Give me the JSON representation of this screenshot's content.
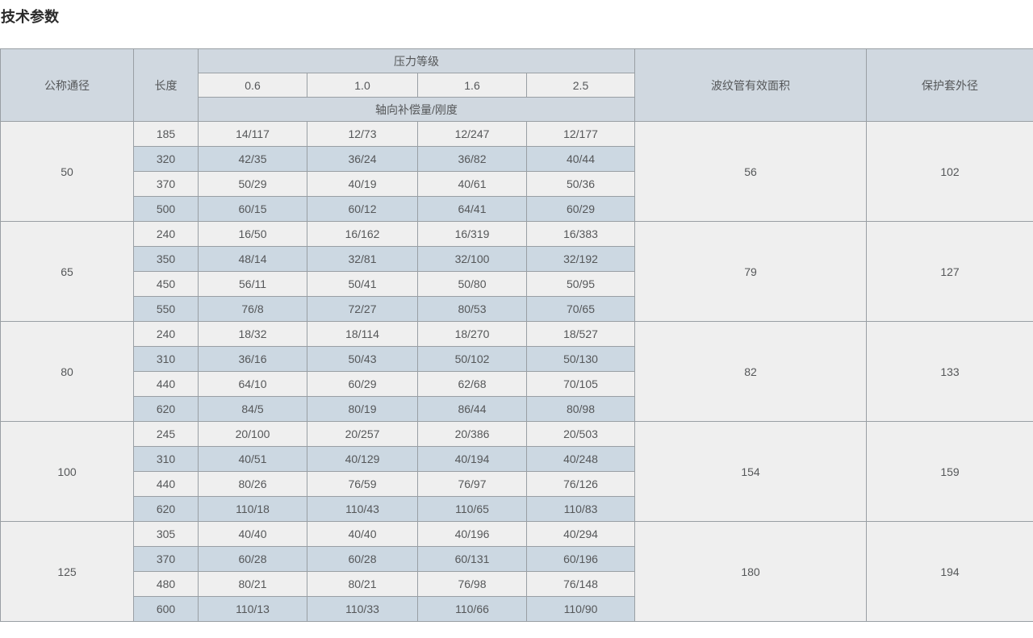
{
  "page": {
    "title": "技术参数"
  },
  "colors": {
    "header_bg": "#d0d8e0",
    "stripe_blue_bg": "#ccd8e2",
    "light_cell_bg": "#efefef",
    "border": "#999fa4",
    "text": "#555759",
    "title_text": "#2a2a2a"
  },
  "table": {
    "headers": {
      "col_diameter": "公称通径",
      "col_length": "长度",
      "pressure_group": "压力等级",
      "pressure_levels": [
        "0.6",
        "1.0",
        "1.6",
        "2.5"
      ],
      "axial_label": "轴向补偿量/刚度",
      "col_area": "波纹管有效面积",
      "col_sleeve": "保护套外径"
    },
    "groups": [
      {
        "diameter": "50",
        "area": "56",
        "sleeve": "102",
        "rows": [
          {
            "length": "185",
            "values": [
              "14/117",
              "12/73",
              "12/247",
              "12/177"
            ]
          },
          {
            "length": "320",
            "values": [
              "42/35",
              "36/24",
              "36/82",
              "40/44"
            ]
          },
          {
            "length": "370",
            "values": [
              "50/29",
              "40/19",
              "40/61",
              "50/36"
            ]
          },
          {
            "length": "500",
            "values": [
              "60/15",
              "60/12",
              "64/41",
              "60/29"
            ]
          }
        ]
      },
      {
        "diameter": "65",
        "area": "79",
        "sleeve": "127",
        "rows": [
          {
            "length": "240",
            "values": [
              "16/50",
              "16/162",
              "16/319",
              "16/383"
            ]
          },
          {
            "length": "350",
            "values": [
              "48/14",
              "32/81",
              "32/100",
              "32/192"
            ]
          },
          {
            "length": "450",
            "values": [
              "56/11",
              "50/41",
              "50/80",
              "50/95"
            ]
          },
          {
            "length": "550",
            "values": [
              "76/8",
              "72/27",
              "80/53",
              "70/65"
            ]
          }
        ]
      },
      {
        "diameter": "80",
        "area": "82",
        "sleeve": "133",
        "rows": [
          {
            "length": "240",
            "values": [
              "18/32",
              "18/114",
              "18/270",
              "18/527"
            ]
          },
          {
            "length": "310",
            "values": [
              "36/16",
              "50/43",
              "50/102",
              "50/130"
            ]
          },
          {
            "length": "440",
            "values": [
              "64/10",
              "60/29",
              "62/68",
              "70/105"
            ]
          },
          {
            "length": "620",
            "values": [
              "84/5",
              "80/19",
              "86/44",
              "80/98"
            ]
          }
        ]
      },
      {
        "diameter": "100",
        "area": "154",
        "sleeve": "159",
        "rows": [
          {
            "length": "245",
            "values": [
              "20/100",
              "20/257",
              "20/386",
              "20/503"
            ]
          },
          {
            "length": "310",
            "values": [
              "40/51",
              "40/129",
              "40/194",
              "40/248"
            ]
          },
          {
            "length": "440",
            "values": [
              "80/26",
              "76/59",
              "76/97",
              "76/126"
            ]
          },
          {
            "length": "620",
            "values": [
              "110/18",
              "110/43",
              "110/65",
              "110/83"
            ]
          }
        ]
      },
      {
        "diameter": "125",
        "area": "180",
        "sleeve": "194",
        "rows": [
          {
            "length": "305",
            "values": [
              "40/40",
              "40/40",
              "40/196",
              "40/294"
            ]
          },
          {
            "length": "370",
            "values": [
              "60/28",
              "60/28",
              "60/131",
              "60/196"
            ]
          },
          {
            "length": "480",
            "values": [
              "80/21",
              "80/21",
              "76/98",
              "76/148"
            ]
          },
          {
            "length": "600",
            "values": [
              "110/13",
              "110/33",
              "110/66",
              "110/90"
            ]
          }
        ]
      }
    ]
  }
}
